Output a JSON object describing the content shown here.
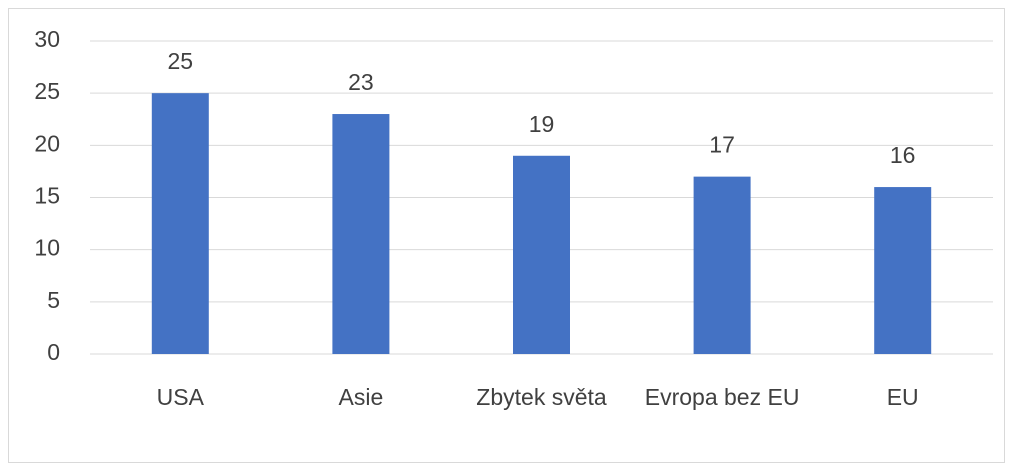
{
  "chart_data": {
    "type": "bar",
    "categories": [
      "USA",
      "Asie",
      "Zbytek světa",
      "Evropa bez EU",
      "EU"
    ],
    "values": [
      25,
      23,
      19,
      17,
      16
    ],
    "color": "#4472c4",
    "ylim": [
      0,
      30
    ],
    "yticks": [
      0,
      5,
      10,
      15,
      20,
      25,
      30
    ],
    "grid": true
  }
}
